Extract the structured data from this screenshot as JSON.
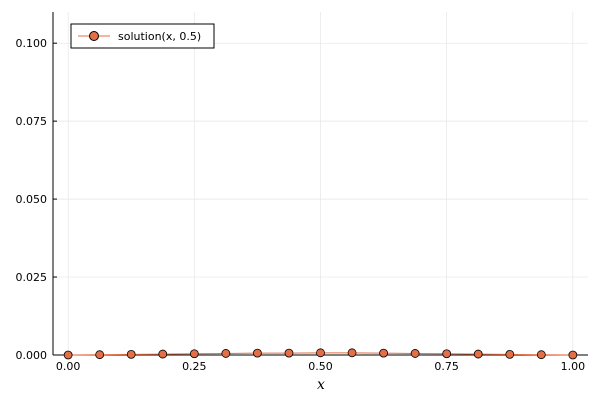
{
  "chart_data": {
    "type": "line",
    "title": "",
    "xlabel": "x",
    "ylabel": "",
    "xlim": [
      -0.03,
      1.03
    ],
    "ylim": [
      0,
      0.11
    ],
    "xticks": [
      0.0,
      0.25,
      0.5,
      0.75,
      1.0
    ],
    "xtick_labels": [
      "0.00",
      "0.25",
      "0.50",
      "0.75",
      "1.00"
    ],
    "yticks": [
      0.0,
      0.025,
      0.05,
      0.075,
      0.1
    ],
    "ytick_labels": [
      "0.000",
      "0.025",
      "0.050",
      "0.075",
      "0.100"
    ],
    "grid": true,
    "legend_position": "top-left",
    "series": [
      {
        "name": "solution(x, 0.5)",
        "color": "#e26f46",
        "marker": "circle",
        "x": [
          0.0,
          0.0625,
          0.125,
          0.1875,
          0.25,
          0.3125,
          0.375,
          0.4375,
          0.5,
          0.5625,
          0.625,
          0.6875,
          0.75,
          0.8125,
          0.875,
          0.9375,
          1.0
        ],
        "y": [
          0.0,
          0.0001,
          0.0002,
          0.0003,
          0.0004,
          0.0005,
          0.0006,
          0.0006,
          0.0007,
          0.0007,
          0.0006,
          0.0005,
          0.0004,
          0.0003,
          0.0002,
          0.0001,
          0.0
        ]
      }
    ]
  }
}
